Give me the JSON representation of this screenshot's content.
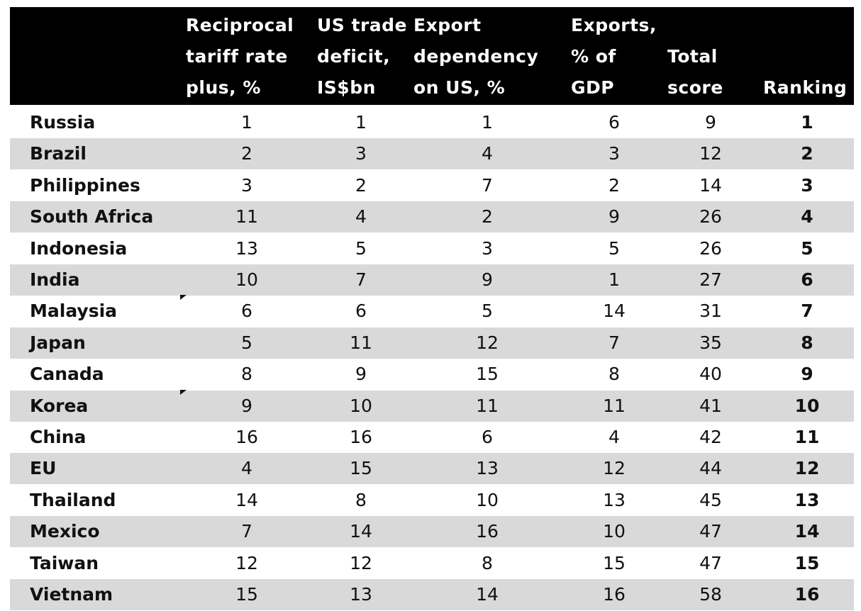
{
  "chart_data": {
    "type": "table",
    "columns": [
      "",
      "Reciprocal tariff rate plus, %",
      "US trade deficit, IS$bn",
      "Export dependency on US, %",
      "Exports, % of GDP",
      "Total score",
      "Ranking"
    ],
    "header_lines": [
      [],
      [
        "Reciprocal",
        "tariff rate",
        "plus, %"
      ],
      [
        "US trade",
        "deficit,",
        "IS$bn"
      ],
      [
        "Export",
        "dependency",
        "on US, %"
      ],
      [
        "Exports,",
        "% of",
        "GDP"
      ],
      [
        "Total",
        "score"
      ],
      [
        "Ranking"
      ]
    ],
    "rows": [
      [
        "Russia",
        "1",
        "1",
        "1",
        "6",
        "9",
        "1"
      ],
      [
        "Brazil",
        "2",
        "3",
        "4",
        "3",
        "12",
        "2"
      ],
      [
        "Philippines",
        "3",
        "2",
        "7",
        "2",
        "14",
        "3"
      ],
      [
        "South Africa",
        "11",
        "4",
        "2",
        "9",
        "26",
        "4"
      ],
      [
        "Indonesia",
        "13",
        "5",
        "3",
        "5",
        "26",
        "5"
      ],
      [
        "India",
        "10",
        "7",
        "9",
        "1",
        "27",
        "6"
      ],
      [
        "Malaysia",
        "6",
        "6",
        "5",
        "14",
        "31",
        "7"
      ],
      [
        "Japan",
        "5",
        "11",
        "12",
        "7",
        "35",
        "8"
      ],
      [
        "Canada",
        "8",
        "9",
        "15",
        "8",
        "40",
        "9"
      ],
      [
        "Korea",
        "9",
        "10",
        "11",
        "11",
        "41",
        "10"
      ],
      [
        "China",
        "16",
        "16",
        "6",
        "4",
        "42",
        "11"
      ],
      [
        "EU",
        "4",
        "15",
        "13",
        "12",
        "44",
        "12"
      ],
      [
        "Thailand",
        "14",
        "8",
        "10",
        "13",
        "45",
        "13"
      ],
      [
        "Mexico",
        "7",
        "14",
        "16",
        "10",
        "47",
        "14"
      ],
      [
        "Taiwan",
        "12",
        "12",
        "8",
        "15",
        "47",
        "15"
      ],
      [
        "Vietnam",
        "15",
        "13",
        "14",
        "16",
        "58",
        "16"
      ]
    ]
  },
  "colors": {
    "header_bg": "#000000",
    "header_text": "#ffffff",
    "band_shade": "#d9d9d9",
    "band_plain": "#ffffff",
    "text": "#111111"
  }
}
